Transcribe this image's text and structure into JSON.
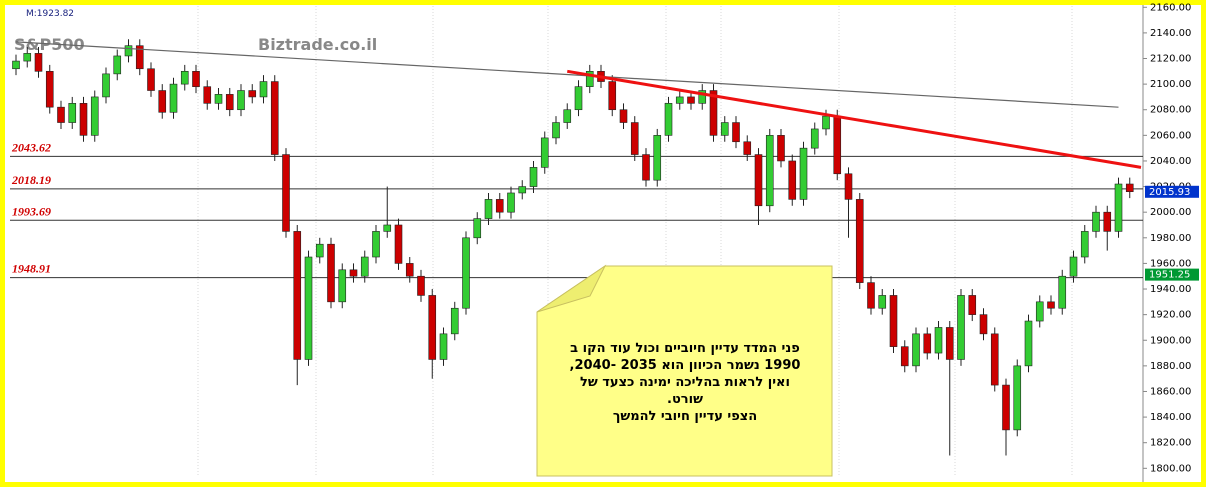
{
  "chart_data": {
    "type": "candlestick",
    "title": "S&P500",
    "watermark": "Biztrade.co.il",
    "info": "M:1923.82",
    "ylim": [
      1794,
      2161
    ],
    "yticks": [
      {
        "value": 1800,
        "label": "1800.00"
      },
      {
        "value": 1820,
        "label": "1820.00"
      },
      {
        "value": 1840,
        "label": "1840.00"
      },
      {
        "value": 1860,
        "label": "1860.00"
      },
      {
        "value": 1880,
        "label": "1880.00"
      },
      {
        "value": 1900,
        "label": "1900.00"
      },
      {
        "value": 1920,
        "label": "1920.00"
      },
      {
        "value": 1940,
        "label": "1940.00"
      },
      {
        "value": 1960,
        "label": "1960.00"
      },
      {
        "value": 1980,
        "label": "1980.00"
      },
      {
        "value": 2000,
        "label": "2000.00"
      },
      {
        "value": 2020,
        "label": "2020.00"
      },
      {
        "value": 2040,
        "label": "2040.00"
      },
      {
        "value": 2060,
        "label": "2060.00"
      },
      {
        "value": 2080,
        "label": "2080.00"
      },
      {
        "value": 2100,
        "label": "2100.00"
      },
      {
        "value": 2120,
        "label": "2120.00"
      },
      {
        "value": 2140,
        "label": "2140.00"
      },
      {
        "value": 2160,
        "label": "2160.00"
      }
    ],
    "up_color": "#33cc33",
    "down_color": "#cc0000",
    "open": [
      2112,
      2118,
      2124,
      2110,
      2082,
      2070,
      2085,
      2060,
      2090,
      2108,
      2122,
      2130,
      2112,
      2095,
      2078,
      2100,
      2110,
      2098,
      2085,
      2092,
      2080,
      2095,
      2090,
      2102,
      2045,
      1985,
      1885,
      1965,
      1975,
      1930,
      1955,
      1950,
      1965,
      1985,
      1990,
      1960,
      1950,
      1935,
      1885,
      1905,
      1925,
      1980,
      1995,
      2010,
      2000,
      2015,
      2020,
      2035,
      2058,
      2070,
      2080,
      2098,
      2110,
      2102,
      2080,
      2070,
      2045,
      2025,
      2060,
      2085,
      2090,
      2085,
      2095,
      2060,
      2070,
      2055,
      2045,
      2005,
      2060,
      2040,
      2010,
      2050,
      2065,
      2075,
      2030,
      2010,
      1945,
      1925,
      1935,
      1895,
      1880,
      1905,
      1890,
      1910,
      1885,
      1935,
      1920,
      1905,
      1865,
      1830,
      1880,
      1915,
      1930,
      1925,
      1950,
      1965,
      1985,
      2000,
      1985,
      2022
    ],
    "high": [
      2123,
      2129,
      2129,
      2115,
      2087,
      2090,
      2090,
      2095,
      2113,
      2127,
      2135,
      2135,
      2117,
      2100,
      2105,
      2115,
      2115,
      2103,
      2097,
      2097,
      2100,
      2100,
      2107,
      2107,
      2050,
      1990,
      1970,
      1980,
      1980,
      1960,
      1960,
      1970,
      1990,
      2020,
      1995,
      1965,
      1955,
      1940,
      1910,
      1930,
      1985,
      2000,
      2015,
      2015,
      2020,
      2025,
      2040,
      2063,
      2075,
      2085,
      2103,
      2115,
      2115,
      2107,
      2085,
      2075,
      2050,
      2065,
      2090,
      2095,
      2095,
      2100,
      2100,
      2075,
      2075,
      2060,
      2050,
      2065,
      2065,
      2045,
      2055,
      2070,
      2080,
      2080,
      2035,
      2015,
      1950,
      1940,
      1940,
      1900,
      1910,
      1910,
      1915,
      1915,
      1940,
      1940,
      1925,
      1910,
      1870,
      1885,
      1920,
      1935,
      1935,
      1955,
      1970,
      1990,
      2005,
      2005,
      2027,
      2027
    ],
    "low": [
      2107,
      2113,
      2105,
      2077,
      2065,
      2065,
      2055,
      2055,
      2085,
      2103,
      2117,
      2107,
      2090,
      2073,
      2073,
      2095,
      2093,
      2080,
      2080,
      2075,
      2075,
      2085,
      2085,
      2040,
      1980,
      1865,
      1880,
      1960,
      1925,
      1925,
      1945,
      1945,
      1960,
      1980,
      1955,
      1945,
      1930,
      1870,
      1880,
      1900,
      1920,
      1975,
      1990,
      1995,
      1995,
      2010,
      2015,
      2030,
      2053,
      2065,
      2075,
      2093,
      2097,
      2075,
      2065,
      2040,
      2020,
      2020,
      2055,
      2080,
      2080,
      2080,
      2055,
      2055,
      2050,
      2040,
      1990,
      2000,
      2035,
      2005,
      2005,
      2045,
      2060,
      2025,
      1980,
      1940,
      1920,
      1920,
      1890,
      1875,
      1875,
      1885,
      1885,
      1810,
      1880,
      1915,
      1900,
      1860,
      1810,
      1825,
      1875,
      1910,
      1920,
      1920,
      1945,
      1960,
      1980,
      1970,
      1980,
      2011
    ],
    "close": [
      2118,
      2124,
      2110,
      2082,
      2070,
      2085,
      2060,
      2090,
      2108,
      2122,
      2130,
      2112,
      2095,
      2078,
      2100,
      2110,
      2098,
      2085,
      2092,
      2080,
      2095,
      2090,
      2102,
      2045,
      1985,
      1885,
      1965,
      1975,
      1930,
      1955,
      1950,
      1965,
      1985,
      1990,
      1960,
      1950,
      1935,
      1885,
      1905,
      1925,
      1980,
      1995,
      2010,
      2000,
      2015,
      2020,
      2035,
      2058,
      2070,
      2080,
      2098,
      2110,
      2102,
      2080,
      2070,
      2045,
      2025,
      2060,
      2085,
      2090,
      2085,
      2095,
      2060,
      2070,
      2055,
      2045,
      2005,
      2060,
      2040,
      2010,
      2050,
      2065,
      2075,
      2030,
      2010,
      1945,
      1925,
      1935,
      1895,
      1880,
      1905,
      1890,
      1910,
      1885,
      1935,
      1920,
      1905,
      1865,
      1830,
      1880,
      1915,
      1930,
      1925,
      1950,
      1965,
      1985,
      2000,
      1985,
      2022,
      2016
    ],
    "levels": [
      2043.62,
      2018.19,
      1993.69,
      1948.91
    ],
    "trendlines": [
      {
        "color": "#666666",
        "x": [
          0,
          98
        ],
        "values": [
          2133,
          2082
        ]
      },
      {
        "color": "#ee1111",
        "x": [
          49,
          100
        ],
        "values": [
          2110,
          2035
        ]
      }
    ],
    "price_tags": [
      {
        "value": 2015.93,
        "color": "#0033cc"
      },
      {
        "value": 1951.25,
        "color": "#009933"
      }
    ],
    "note": [
      "פני המדד עדיין חיוביים וכול עוד הקו ב",
      "1990 נשמר  הכיוון הוא 2035 -2040,",
      "ואין לראות בהליכה ימינה כצעד  של",
      "שורט.",
      "הצפי עדיין חיובי להמשך"
    ]
  }
}
